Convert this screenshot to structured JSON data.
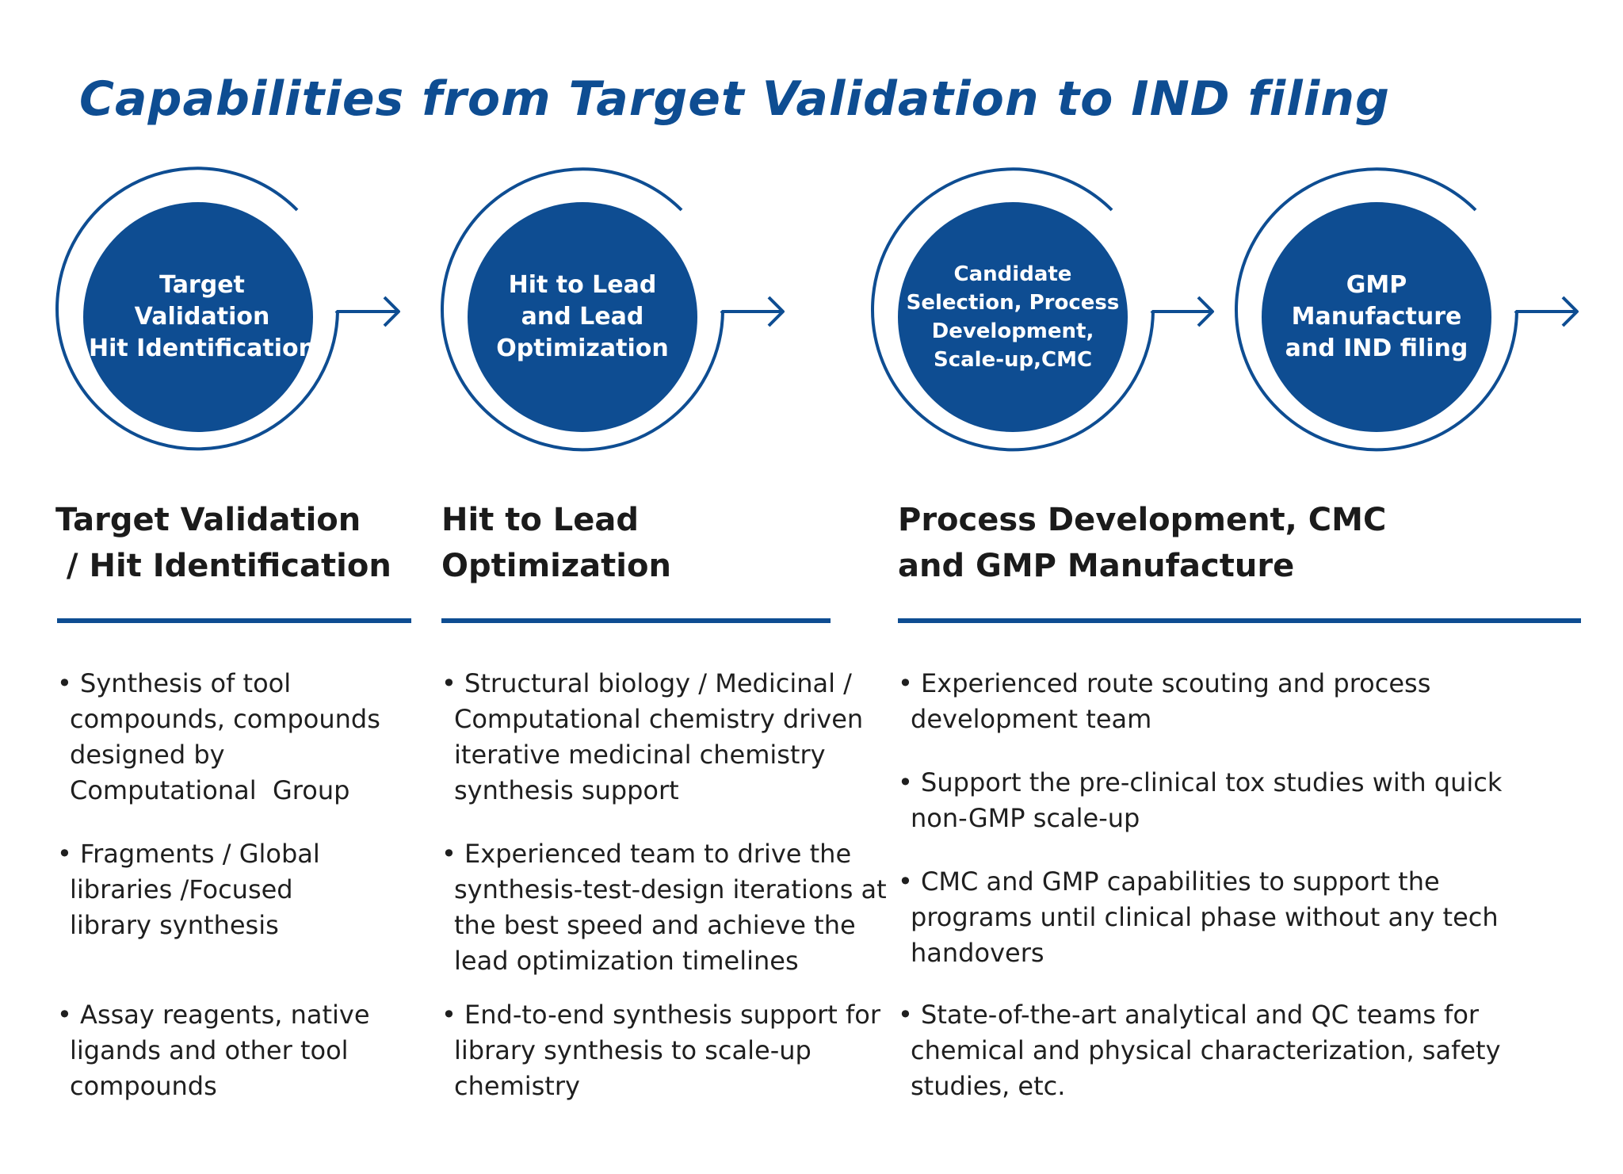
{
  "title": "Capabilities from Target Validation to IND filing",
  "colors": {
    "accent": "#0e4d92",
    "text": "#1f1f1f"
  },
  "steps": [
    {
      "lines": [
        "Target",
        "Validation",
        "Hit Identification"
      ]
    },
    {
      "lines": [
        "Hit to Lead",
        "and Lead",
        "Optimization"
      ]
    },
    {
      "lines": [
        "Candidate",
        "Selection, Process",
        "Development,",
        "Scale-up,CMC"
      ]
    },
    {
      "lines": [
        "GMP",
        "Manufacture",
        "and IND filing"
      ]
    }
  ],
  "columns": [
    {
      "heading": [
        "Target Validation",
        " / Hit Identification"
      ],
      "bullets": [
        [
          "• Synthesis of tool",
          "compounds, compounds",
          "designed by",
          "Computational  Group"
        ],
        [
          "• Fragments / Global",
          "libraries /Focused",
          "library synthesis"
        ],
        [
          "• Assay reagents, native",
          "ligands and other tool",
          "compounds"
        ]
      ]
    },
    {
      "heading": [
        "Hit to Lead",
        "Optimization"
      ],
      "bullets": [
        [
          "• Structural biology / Medicinal /",
          "Computational chemistry driven",
          "iterative medicinal chemistry",
          "synthesis support"
        ],
        [
          "• Experienced team to drive the",
          "synthesis-test-design iterations at",
          "the best speed and achieve the",
          "lead optimization timelines"
        ],
        [
          "• End-to-end synthesis support for",
          "library synthesis to scale-up",
          "chemistry"
        ]
      ]
    },
    {
      "heading": [
        "Process Development, CMC",
        "and GMP Manufacture"
      ],
      "bullets": [
        [
          "• Experienced route scouting and process",
          "development team"
        ],
        [
          "• Support the pre-clinical tox studies with quick",
          "non-GMP scale-up"
        ],
        [
          "• CMC and GMP capabilities to support the",
          "programs until clinical phase without any tech",
          "handovers"
        ],
        [
          "• State-of-the-art analytical and QC teams for",
          "chemical and physical characterization, safety",
          "studies, etc."
        ]
      ]
    }
  ]
}
